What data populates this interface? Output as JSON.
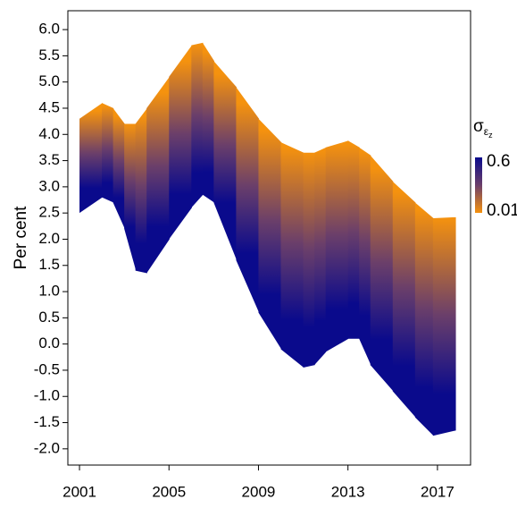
{
  "chart_data": {
    "type": "band",
    "y_label": "Per cent",
    "x": [
      2001,
      2002,
      2002.5,
      2003,
      2003.5,
      2004,
      2005,
      2006,
      2006.5,
      2007,
      2008,
      2009,
      2010,
      2011,
      2011.5,
      2012,
      2013,
      2013.5,
      2014,
      2015,
      2016,
      2016.8,
      2017.8
    ],
    "upper": [
      4.3,
      4.6,
      4.5,
      4.2,
      4.2,
      4.5,
      5.1,
      5.7,
      5.75,
      5.4,
      4.9,
      4.3,
      3.85,
      3.65,
      3.65,
      3.75,
      3.88,
      3.75,
      3.6,
      3.1,
      2.7,
      2.4,
      2.42
    ],
    "lower": [
      2.5,
      2.8,
      2.7,
      2.2,
      1.4,
      1.35,
      2.0,
      2.6,
      2.85,
      2.7,
      1.6,
      0.6,
      -0.1,
      -0.45,
      -0.4,
      -0.15,
      0.1,
      0.1,
      -0.4,
      -0.9,
      -1.4,
      -1.75,
      -1.65
    ],
    "xlim": [
      2000.48,
      2018.48
    ],
    "xticks": [
      2001,
      2005,
      2009,
      2013,
      2017
    ],
    "ylim": [
      -2.31,
      6.36
    ],
    "yticks": [
      {
        "value": 6,
        "label": "6.0"
      },
      {
        "value": 5.5,
        "label": "5.5"
      },
      {
        "value": 5,
        "label": "5.0"
      },
      {
        "value": 4.5,
        "label": "4.5"
      },
      {
        "value": 4,
        "label": "4.0"
      },
      {
        "value": 3.5,
        "label": "3.5"
      },
      {
        "value": 3,
        "label": "3.0"
      },
      {
        "value": 2.5,
        "label": "2.5"
      },
      {
        "value": 2,
        "label": "2.0"
      },
      {
        "value": 1.5,
        "label": "1.5"
      },
      {
        "value": 1,
        "label": "1.0"
      },
      {
        "value": 0.5,
        "label": "0.5"
      },
      {
        "value": 0,
        "label": "0.0"
      },
      {
        "value": -0.5,
        "label": "-0.5"
      },
      {
        "value": -1,
        "label": "-1.0"
      },
      {
        "value": -1.5,
        "label": "-1.5"
      },
      {
        "value": -2,
        "label": "-2.0"
      }
    ],
    "legend": {
      "symbol": "σ",
      "sub": "ε",
      "subsub": "z",
      "max": 0.6,
      "min": 0.01,
      "max_color": "#0a0a8c",
      "min_color": "#f5920e",
      "mid_color": "#6b3f6a"
    }
  }
}
